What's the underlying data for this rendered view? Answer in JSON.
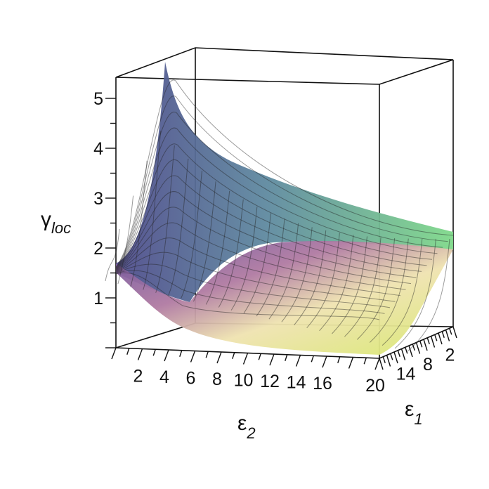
{
  "chart_data": {
    "type": "surface3d",
    "title": "",
    "zlabel": {
      "symbol": "γ",
      "subscript": "loc"
    },
    "xlabel": {
      "symbol": "ε",
      "subscript": "2"
    },
    "ylabel": {
      "symbol": "ε",
      "subscript": "1"
    },
    "zlim": [
      0,
      5.5
    ],
    "xlim": [
      0,
      20
    ],
    "ylim": [
      0,
      20
    ],
    "z_ticks": [
      "1",
      "2",
      "3",
      "4",
      "5"
    ],
    "x_ticks": [
      "2",
      "4",
      "6",
      "8",
      "10",
      "12",
      "14",
      "16",
      "20"
    ],
    "y_ticks": [
      "2",
      "8",
      "14"
    ],
    "grid": "surface mesh",
    "colormap": [
      "#7a5aa8",
      "#c87fa0",
      "#f2e6a0",
      "#dfe86a",
      "#6fcf73"
    ],
    "surface_samples": {
      "description_axes": "rows: eps2 front edge, cols: eps1 side edge",
      "front_edge_eps2": [
        0,
        2,
        4,
        6,
        8,
        10,
        12,
        14,
        16,
        20
      ],
      "front_edge_gamma": [
        0.9,
        0.55,
        0.35,
        0.25,
        0.2,
        0.17,
        0.15,
        0.14,
        0.13,
        0.12
      ],
      "back_edge_eps2": [
        0,
        2,
        4,
        6,
        8,
        10,
        12,
        14,
        16,
        20
      ],
      "back_edge_gamma": [
        1.7,
        2.4,
        5.4,
        3.9,
        3.1,
        2.7,
        2.45,
        2.3,
        2.2,
        2.05
      ]
    }
  }
}
